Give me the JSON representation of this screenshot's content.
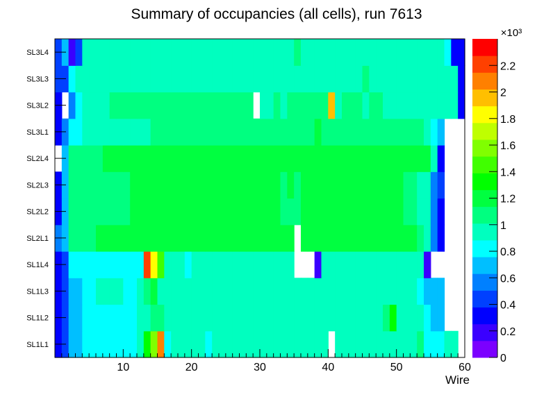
{
  "title": "Summary of occupancies (all cells),      run 7613",
  "chart_data": {
    "type": "heatmap",
    "title": "Summary of occupancies (all cells),      run 7613",
    "xlabel": "Wire",
    "ylabel": "",
    "xlim": [
      0,
      60
    ],
    "x_ticks": [
      10,
      20,
      30,
      40,
      50,
      60
    ],
    "y_categories": [
      "SL1L1",
      "SL1L2",
      "SL1L3",
      "SL1L4",
      "SL2L1",
      "SL2L2",
      "SL2L3",
      "SL2L4",
      "SL3L1",
      "SL3L2",
      "SL3L3",
      "SL3L4"
    ],
    "z_range": [
      0,
      2400
    ],
    "z_multiplier_label": "×10³",
    "z_ticks": [
      "0",
      "0.2",
      "0.4",
      "0.6",
      "0.8",
      "1",
      "1.2",
      "1.4",
      "1.6",
      "1.8",
      "2",
      "2.2"
    ],
    "palette": [
      "#7b00ff",
      "#3a00ff",
      "#0000ff",
      "#0040ff",
      "#0080ff",
      "#00bfff",
      "#00ffff",
      "#00ffbf",
      "#00ff80",
      "#00ff40",
      "#00ff00",
      "#40ff00",
      "#80ff00",
      "#bfff00",
      "#ffff00",
      "#ffbf00",
      "#ff8000",
      "#ff4000",
      "#ff0000"
    ],
    "rows": [
      [
        300,
        380,
        750,
        750,
        800,
        850,
        850,
        850,
        850,
        850,
        850,
        850,
        900,
        1300,
        1600,
        2100,
        850,
        900,
        900,
        900,
        900,
        900,
        850,
        900,
        1000,
        900,
        900,
        900,
        900,
        900,
        900,
        900,
        1000,
        900,
        900,
        900,
        900,
        900,
        900,
        900,
        0,
        950,
        950,
        950,
        950,
        1000,
        950,
        950,
        1000,
        1000,
        1000,
        1000,
        1000,
        1050,
        800,
        800,
        800,
        900,
        900,
        0
      ],
      [
        300,
        450,
        700,
        750,
        850,
        850,
        850,
        850,
        850,
        850,
        850,
        850,
        1000,
        1000,
        1100,
        1100,
        950,
        900,
        900,
        900,
        900,
        900,
        900,
        950,
        1000,
        900,
        900,
        900,
        900,
        950,
        950,
        950,
        1000,
        950,
        950,
        950,
        950,
        950,
        950,
        950,
        950,
        950,
        950,
        950,
        950,
        950,
        950,
        1000,
        1050,
        1350,
        1000,
        1000,
        1000,
        1000,
        800,
        700,
        700,
        0,
        0,
        0
      ],
      [
        300,
        450,
        750,
        750,
        800,
        850,
        900,
        900,
        900,
        900,
        850,
        850,
        1000,
        1100,
        1200,
        1000,
        950,
        900,
        900,
        950,
        950,
        950,
        900,
        950,
        950,
        950,
        950,
        900,
        900,
        950,
        950,
        950,
        950,
        950,
        950,
        950,
        950,
        950,
        950,
        950,
        950,
        950,
        950,
        950,
        950,
        1000,
        1000,
        1000,
        950,
        950,
        950,
        950,
        950,
        850,
        700,
        650,
        650,
        0,
        0,
        0
      ],
      [
        350,
        450,
        800,
        800,
        800,
        850,
        850,
        850,
        850,
        850,
        850,
        850,
        850,
        2200,
        1800,
        1500,
        900,
        900,
        900,
        850,
        900,
        900,
        900,
        950,
        950,
        950,
        900,
        900,
        900,
        950,
        950,
        900,
        900,
        950,
        950,
        0,
        0,
        0,
        250,
        950,
        950,
        950,
        950,
        950,
        950,
        950,
        950,
        950,
        950,
        950,
        950,
        950,
        950,
        950,
        250,
        0,
        0,
        0,
        0,
        0
      ],
      [
        550,
        750,
        1050,
        1050,
        1100,
        1100,
        1150,
        1150,
        1150,
        1150,
        1150,
        1150,
        1150,
        1150,
        1150,
        1150,
        1150,
        1150,
        1150,
        1150,
        1150,
        1150,
        1150,
        1150,
        1150,
        1150,
        1200,
        1200,
        1150,
        1150,
        1150,
        1150,
        1150,
        1150,
        1150,
        0,
        1150,
        1150,
        1150,
        1150,
        1150,
        1150,
        1150,
        1150,
        1150,
        1150,
        1150,
        1150,
        1150,
        1150,
        1150,
        1150,
        1150,
        1050,
        900,
        550,
        300,
        0,
        0,
        0
      ],
      [
        350,
        700,
        1050,
        1050,
        1050,
        1100,
        1100,
        1100,
        1100,
        1100,
        1100,
        1150,
        1200,
        1200,
        1200,
        1200,
        1200,
        1200,
        1200,
        1200,
        1200,
        1200,
        1150,
        1150,
        1200,
        1200,
        1200,
        1150,
        1150,
        1150,
        1150,
        1150,
        1150,
        1050,
        1050,
        1050,
        1150,
        1150,
        1150,
        1150,
        1150,
        1200,
        1200,
        1200,
        1200,
        1150,
        1150,
        1150,
        1150,
        1150,
        1150,
        1100,
        1100,
        1000,
        900,
        550,
        300,
        0,
        0,
        0
      ],
      [
        350,
        700,
        1050,
        1050,
        1100,
        1100,
        1100,
        1100,
        1100,
        1100,
        1100,
        1150,
        1200,
        1200,
        1200,
        1200,
        1200,
        1200,
        1200,
        1200,
        1200,
        1200,
        1150,
        1150,
        1200,
        1200,
        1200,
        1150,
        1250,
        1150,
        1150,
        1150,
        1150,
        1050,
        1150,
        1100,
        1150,
        1150,
        1150,
        1150,
        1150,
        1200,
        1200,
        1200,
        1200,
        1150,
        1150,
        1150,
        1150,
        1150,
        1150,
        1100,
        1100,
        1000,
        900,
        550,
        500,
        0,
        0,
        0
      ],
      [
        0,
        700,
        1050,
        1050,
        1100,
        1100,
        1100,
        1150,
        1150,
        1150,
        1150,
        1150,
        1200,
        1200,
        1200,
        1200,
        1200,
        1200,
        1200,
        1150,
        1200,
        1200,
        1200,
        1200,
        1200,
        1200,
        1200,
        1200,
        1250,
        1200,
        1200,
        1200,
        1200,
        1200,
        1200,
        1200,
        1200,
        1200,
        1200,
        1200,
        1200,
        1200,
        1200,
        1200,
        1200,
        1200,
        1200,
        1200,
        1200,
        1200,
        1200,
        1150,
        1150,
        1150,
        1150,
        900,
        300,
        0,
        0,
        0
      ],
      [
        300,
        550,
        850,
        850,
        950,
        950,
        950,
        950,
        950,
        1000,
        1000,
        1000,
        1000,
        1000,
        1050,
        1050,
        1050,
        1050,
        1050,
        1050,
        1050,
        1100,
        1050,
        1050,
        1100,
        1050,
        1050,
        1050,
        1050,
        1100,
        1100,
        1100,
        1050,
        1050,
        1050,
        1100,
        1100,
        1100,
        1150,
        1050,
        1050,
        1050,
        1050,
        1050,
        1050,
        1050,
        1050,
        1050,
        1050,
        1050,
        1050,
        1050,
        1050,
        1050,
        1000,
        850,
        700,
        0,
        0,
        0
      ],
      [
        300,
        0,
        550,
        850,
        950,
        950,
        950,
        1000,
        1050,
        1050,
        1050,
        1050,
        1050,
        1100,
        1050,
        1050,
        1050,
        1050,
        1050,
        1050,
        1050,
        1050,
        1050,
        1050,
        1050,
        1050,
        1050,
        1050,
        1050,
        0,
        1000,
        1000,
        1100,
        1000,
        1050,
        1050,
        1050,
        1050,
        1050,
        1100,
        1900,
        1000,
        1050,
        1050,
        1050,
        1000,
        1050,
        1050,
        1000,
        1000,
        1000,
        950,
        950,
        950,
        950,
        950,
        950,
        950,
        950,
        300
      ],
      [
        400,
        400,
        800,
        950,
        950,
        950,
        950,
        950,
        950,
        950,
        950,
        950,
        950,
        950,
        950,
        950,
        950,
        950,
        950,
        950,
        950,
        950,
        950,
        950,
        950,
        950,
        950,
        950,
        950,
        950,
        950,
        950,
        950,
        950,
        950,
        950,
        950,
        950,
        950,
        950,
        950,
        950,
        950,
        950,
        950,
        1050,
        950,
        950,
        950,
        950,
        950,
        950,
        950,
        950,
        950,
        950,
        950,
        950,
        950,
        300
      ],
      [
        450,
        750,
        250,
        450,
        950,
        950,
        950,
        950,
        950,
        950,
        950,
        950,
        950,
        950,
        950,
        950,
        950,
        950,
        950,
        950,
        950,
        950,
        950,
        950,
        950,
        950,
        950,
        950,
        950,
        1000,
        1000,
        1000,
        1000,
        1000,
        1000,
        1050,
        1000,
        1000,
        1000,
        1000,
        1000,
        1000,
        1000,
        1000,
        1000,
        1000,
        1000,
        950,
        950,
        950,
        950,
        950,
        950,
        950,
        950,
        950,
        900,
        800,
        300,
        350
      ]
    ]
  }
}
